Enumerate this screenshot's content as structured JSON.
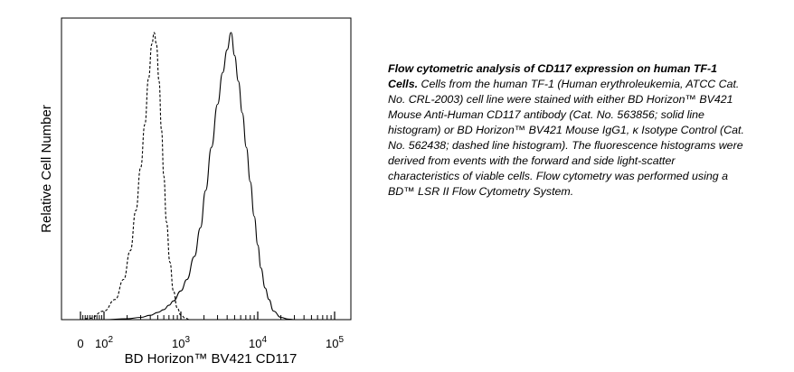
{
  "chart_data": {
    "type": "line",
    "xlabel": "BD Horizon™ BV421 CD117",
    "ylabel": "Relative Cell Number",
    "x_scale": "biexponential (log)",
    "x_ticks": [
      {
        "value": 0,
        "label": "0",
        "exp": ""
      },
      {
        "value": 100,
        "label": "10",
        "exp": "2"
      },
      {
        "value": 1000,
        "label": "10",
        "exp": "3"
      },
      {
        "value": 10000,
        "label": "10",
        "exp": "4"
      },
      {
        "value": 100000,
        "label": "10",
        "exp": "5"
      }
    ],
    "grid": false,
    "legend": "none",
    "series": [
      {
        "style": "dashed",
        "x": [
          0,
          40,
          100,
          140,
          180,
          220,
          260,
          300,
          340,
          380,
          420,
          450,
          480,
          520,
          560,
          600,
          650,
          720,
          800,
          900,
          1000,
          1150,
          1300
        ],
        "y": [
          0.0,
          0.005,
          0.03,
          0.07,
          0.14,
          0.24,
          0.38,
          0.53,
          0.68,
          0.84,
          0.96,
          1.0,
          0.96,
          0.83,
          0.66,
          0.5,
          0.34,
          0.2,
          0.1,
          0.04,
          0.015,
          0.005,
          0.0
        ]
      },
      {
        "style": "solid",
        "x": [
          100,
          200,
          300,
          400,
          500,
          600,
          700,
          800,
          1000,
          1200,
          1500,
          1800,
          2100,
          2500,
          3000,
          3500,
          4000,
          4500,
          5000,
          5600,
          6300,
          7100,
          8000,
          9000,
          10000,
          11000,
          12500,
          14000,
          16000,
          20000,
          25000,
          30000
        ],
        "y": [
          0.0,
          0.003,
          0.008,
          0.015,
          0.025,
          0.035,
          0.05,
          0.065,
          0.1,
          0.14,
          0.22,
          0.32,
          0.45,
          0.6,
          0.75,
          0.86,
          0.94,
          1.0,
          0.92,
          0.83,
          0.72,
          0.6,
          0.48,
          0.36,
          0.26,
          0.18,
          0.11,
          0.07,
          0.03,
          0.008,
          0.002,
          0.0
        ]
      }
    ]
  },
  "caption": {
    "title": "Flow cytometric analysis of CD117 expression on human TF-1 Cells.",
    "body": "Cells from the human TF-1 (Human erythroleukemia, ATCC Cat. No. CRL-2003) cell line were stained with either BD Horizon™ BV421 Mouse Anti-Human CD117 antibody (Cat. No. 563856; solid line histogram) or BD Horizon™ BV421 Mouse IgG1, κ Isotype Control (Cat. No. 562438; dashed line histogram). The fluorescence histograms were derived from events with the forward and side light-scatter characteristics of viable cells. Flow cytometry was performed using a BD™ LSR II Flow Cytometry System."
  }
}
